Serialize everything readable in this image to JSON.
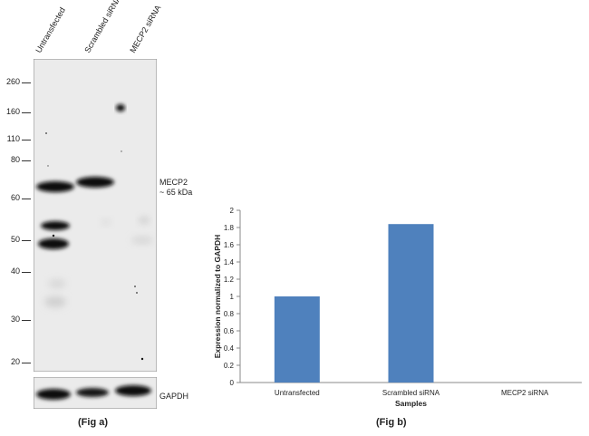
{
  "western_blot": {
    "lanes": [
      "Untransfected",
      "Scrambled siRNA",
      "MECP2 siRNA"
    ],
    "markers": [
      "260",
      "160",
      "110",
      "80",
      "60",
      "50",
      "40",
      "30",
      "20"
    ],
    "target_label_line1": "MECP2",
    "target_label_line2": "~ 65 kDa",
    "loading_control": "GAPDH",
    "caption": "(Fig a)"
  },
  "chart_data": {
    "type": "bar",
    "categories": [
      "Untransfected",
      "Scrambled siRNA",
      "MECP2 siRNA"
    ],
    "values": [
      1.0,
      1.84,
      0.0
    ],
    "xlabel": "Samples",
    "ylabel": "Expression  normalized to GAPDH",
    "ylim": [
      0,
      2
    ],
    "yticks": [
      "0",
      "0.2",
      "0.4",
      "0.6",
      "0.8",
      "1",
      "1.2",
      "1.4",
      "1.6",
      "1.8",
      "2"
    ],
    "grid": false,
    "bar_color": "#4f81bd",
    "caption": "(Fig b)"
  }
}
